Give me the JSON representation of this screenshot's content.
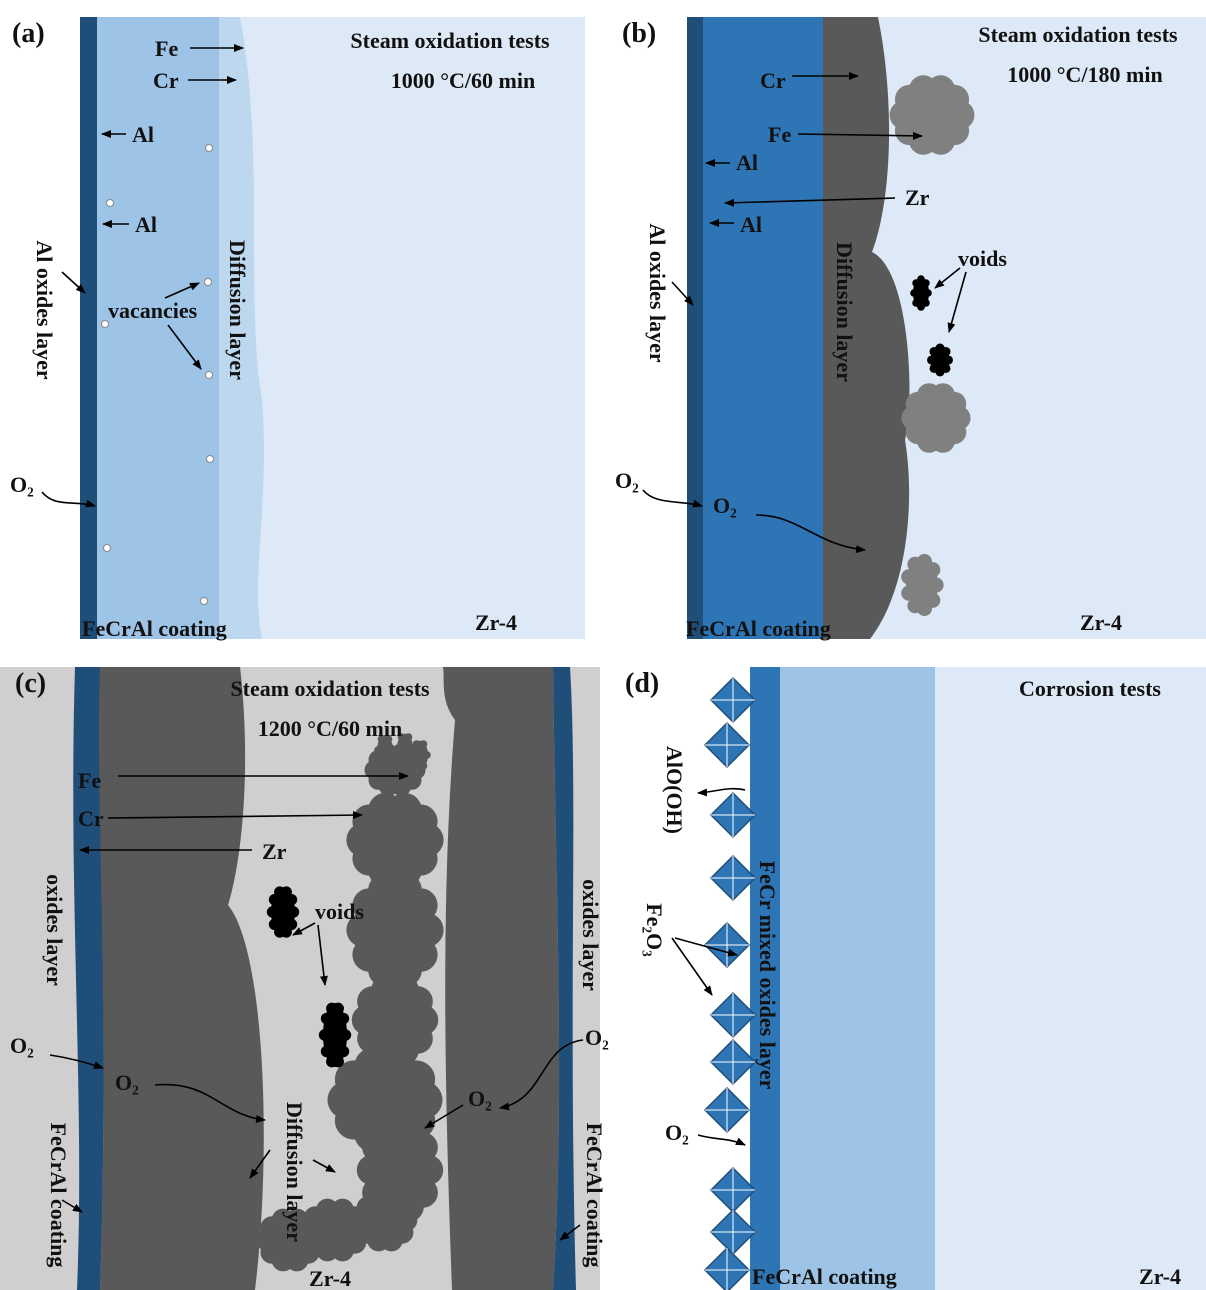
{
  "panels": [
    {
      "label": "(a)",
      "texts": [
        "Steam oxidation tests",
        "1000 °C/60 min",
        "Fe",
        "Cr",
        "Al",
        "Al",
        "Al oxides layer",
        "vacancies",
        "Diffusion layer",
        "O₂",
        "FeCrAl coating",
        "Zr-4"
      ]
    },
    {
      "label": "(b)",
      "texts": [
        "Steam oxidation tests",
        "1000 °C/180 min",
        "Cr",
        "Fe",
        "Al",
        "Zr",
        "Al",
        "Al oxides layer",
        "Diffusion layer",
        "voids",
        "O₂",
        "O₂",
        "FeCrAl coating",
        "Zr-4"
      ]
    },
    {
      "label": "(c)",
      "texts": [
        "Steam oxidation tests",
        "1200 °C/60 min",
        "Fe",
        "Cr",
        "Zr",
        "voids",
        "oxides layer",
        "oxides layer",
        "O₂",
        "O₂",
        "O₂",
        "O₂",
        "Diffusion layer",
        "FeCrAl coating",
        "FeCrAl coating",
        "Zr-4"
      ]
    },
    {
      "label": "(d)",
      "texts": [
        "Corrosion tests",
        "AlO(OH)",
        "Fe₂O₃",
        "FeCr mixed oxides layer",
        "O₂",
        "FeCrAl coating",
        "Zr-4"
      ]
    }
  ]
}
